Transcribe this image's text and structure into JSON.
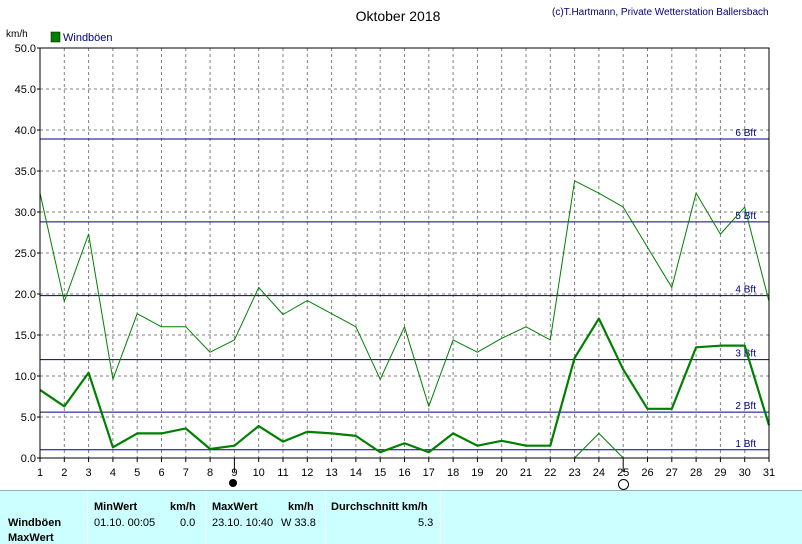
{
  "chart_data": {
    "type": "line",
    "title": "Oktober 2018",
    "copyright": "(c)T.Hartmann, Private Wetterstation Ballersbach",
    "ylabel": "km/h",
    "ylim": [
      0,
      50
    ],
    "yticks": [
      "0.0",
      "5.0",
      "10.0",
      "15.0",
      "20.0",
      "25.0",
      "30.0",
      "35.0",
      "40.0",
      "45.0",
      "50.0"
    ],
    "x": [
      1,
      2,
      3,
      4,
      5,
      6,
      7,
      8,
      9,
      10,
      11,
      12,
      13,
      14,
      15,
      16,
      17,
      18,
      19,
      20,
      21,
      22,
      23,
      24,
      25,
      26,
      27,
      28,
      29,
      30,
      31
    ],
    "grid": true,
    "legend": "top-left",
    "series": [
      {
        "name": "Windböen",
        "color": "#008000",
        "style": "bold",
        "values": [
          8.3,
          6.3,
          10.4,
          1.3,
          3.0,
          3.0,
          3.6,
          1.1,
          1.5,
          3.9,
          2.0,
          3.2,
          3.0,
          2.7,
          0.7,
          1.8,
          0.7,
          3.0,
          1.5,
          2.1,
          1.5,
          1.5,
          12.2,
          17.0,
          10.8,
          6.0,
          6.0,
          13.5,
          13.7,
          13.7,
          4.0
        ]
      },
      {
        "color": "#008000",
        "style": "thin",
        "values": [
          32.3,
          19.1,
          27.3,
          9.6,
          17.6,
          16.0,
          16.0,
          12.9,
          14.4,
          20.8,
          17.5,
          19.2,
          17.6,
          16.0,
          9.6,
          16.0,
          6.3,
          14.4,
          12.9,
          14.6,
          16.0,
          14.4,
          33.8,
          32.3,
          30.6,
          null,
          20.8,
          32.3,
          27.3,
          30.6,
          19.1
        ]
      },
      {
        "color": "#008000",
        "style": "thin",
        "points": [
          [
            23,
            0.0
          ],
          [
            24,
            3.0
          ],
          [
            25,
            0.0
          ]
        ]
      }
    ],
    "reference_lines": [
      {
        "label": "1 Bft",
        "value": 1.0
      },
      {
        "label": "2 Bft",
        "value": 5.6
      },
      {
        "label": "3 Bft",
        "value": 12.0
      },
      {
        "label": "4 Bft",
        "value": 19.8
      },
      {
        "label": "5 Bft",
        "value": 28.8
      },
      {
        "label": "6 Bft",
        "value": 38.9
      }
    ],
    "moon_phases": [
      {
        "day": 9,
        "phase": "full"
      },
      {
        "day": 25,
        "phase": "new"
      }
    ],
    "colors": {
      "grid": "#808080",
      "reference": "#000080",
      "axis": "#000000"
    }
  },
  "info_panel": {
    "row_label_1": "Windböen",
    "row_label_2": "MaxWert",
    "min_header": "MinWert",
    "min_unit": "km/h",
    "min_datetime": "01.10.  00:05",
    "min_value": "0.0",
    "max_header": "MaxWert",
    "max_unit": "km/h",
    "max_datetime": "23.10.  10:40",
    "max_value": "W 33.8",
    "avg_header": "Durchschnitt km/h",
    "avg_value": "5.3",
    "background": "#ccffff"
  }
}
